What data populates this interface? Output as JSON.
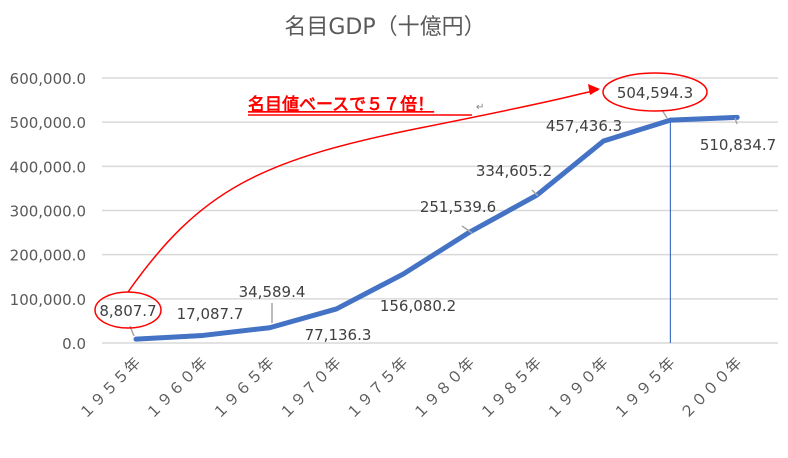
{
  "chart_data": {
    "type": "line",
    "title": "名目GDP（十億円）",
    "xlabel": "",
    "ylabel": "",
    "categories": [
      "１９５５年",
      "１９６０年",
      "１９６５年",
      "１９７０年",
      "１９７５年",
      "１９８０年",
      "１９８５年",
      "１９９０年",
      "１９９５年",
      "２０００年"
    ],
    "series": [
      {
        "name": "名目GDP",
        "values": [
          8807.7,
          17087.7,
          34589.4,
          77136.3,
          156080.2,
          251539.6,
          334605.2,
          457436.3,
          504594.3,
          510834.7
        ]
      }
    ],
    "data_labels": [
      "8,807.7",
      "17,087.7",
      "34,589.4",
      "77,136.3",
      "156,080.2",
      "251,539.6",
      "334,605.2",
      "457,436.3",
      "504,594.3",
      "510,834.7"
    ],
    "ylim": [
      0,
      600000
    ],
    "yticks": [
      0,
      100000,
      200000,
      300000,
      400000,
      500000,
      600000
    ],
    "ytick_labels": [
      "0.0",
      "100,000.0",
      "200,000.0",
      "300,000.0",
      "400,000.0",
      "500,000.0",
      "600,000.0"
    ],
    "grid": true,
    "legend": "none",
    "annotation": {
      "text": "名目値ベースで５７倍！",
      "mark": "↵",
      "from_category": "１９５５年",
      "to_category": "１９９５年"
    },
    "colors": {
      "line": "#4472C4",
      "annotation": "#FF0000",
      "grid": "#D9D9D9",
      "text": "#595959"
    }
  }
}
